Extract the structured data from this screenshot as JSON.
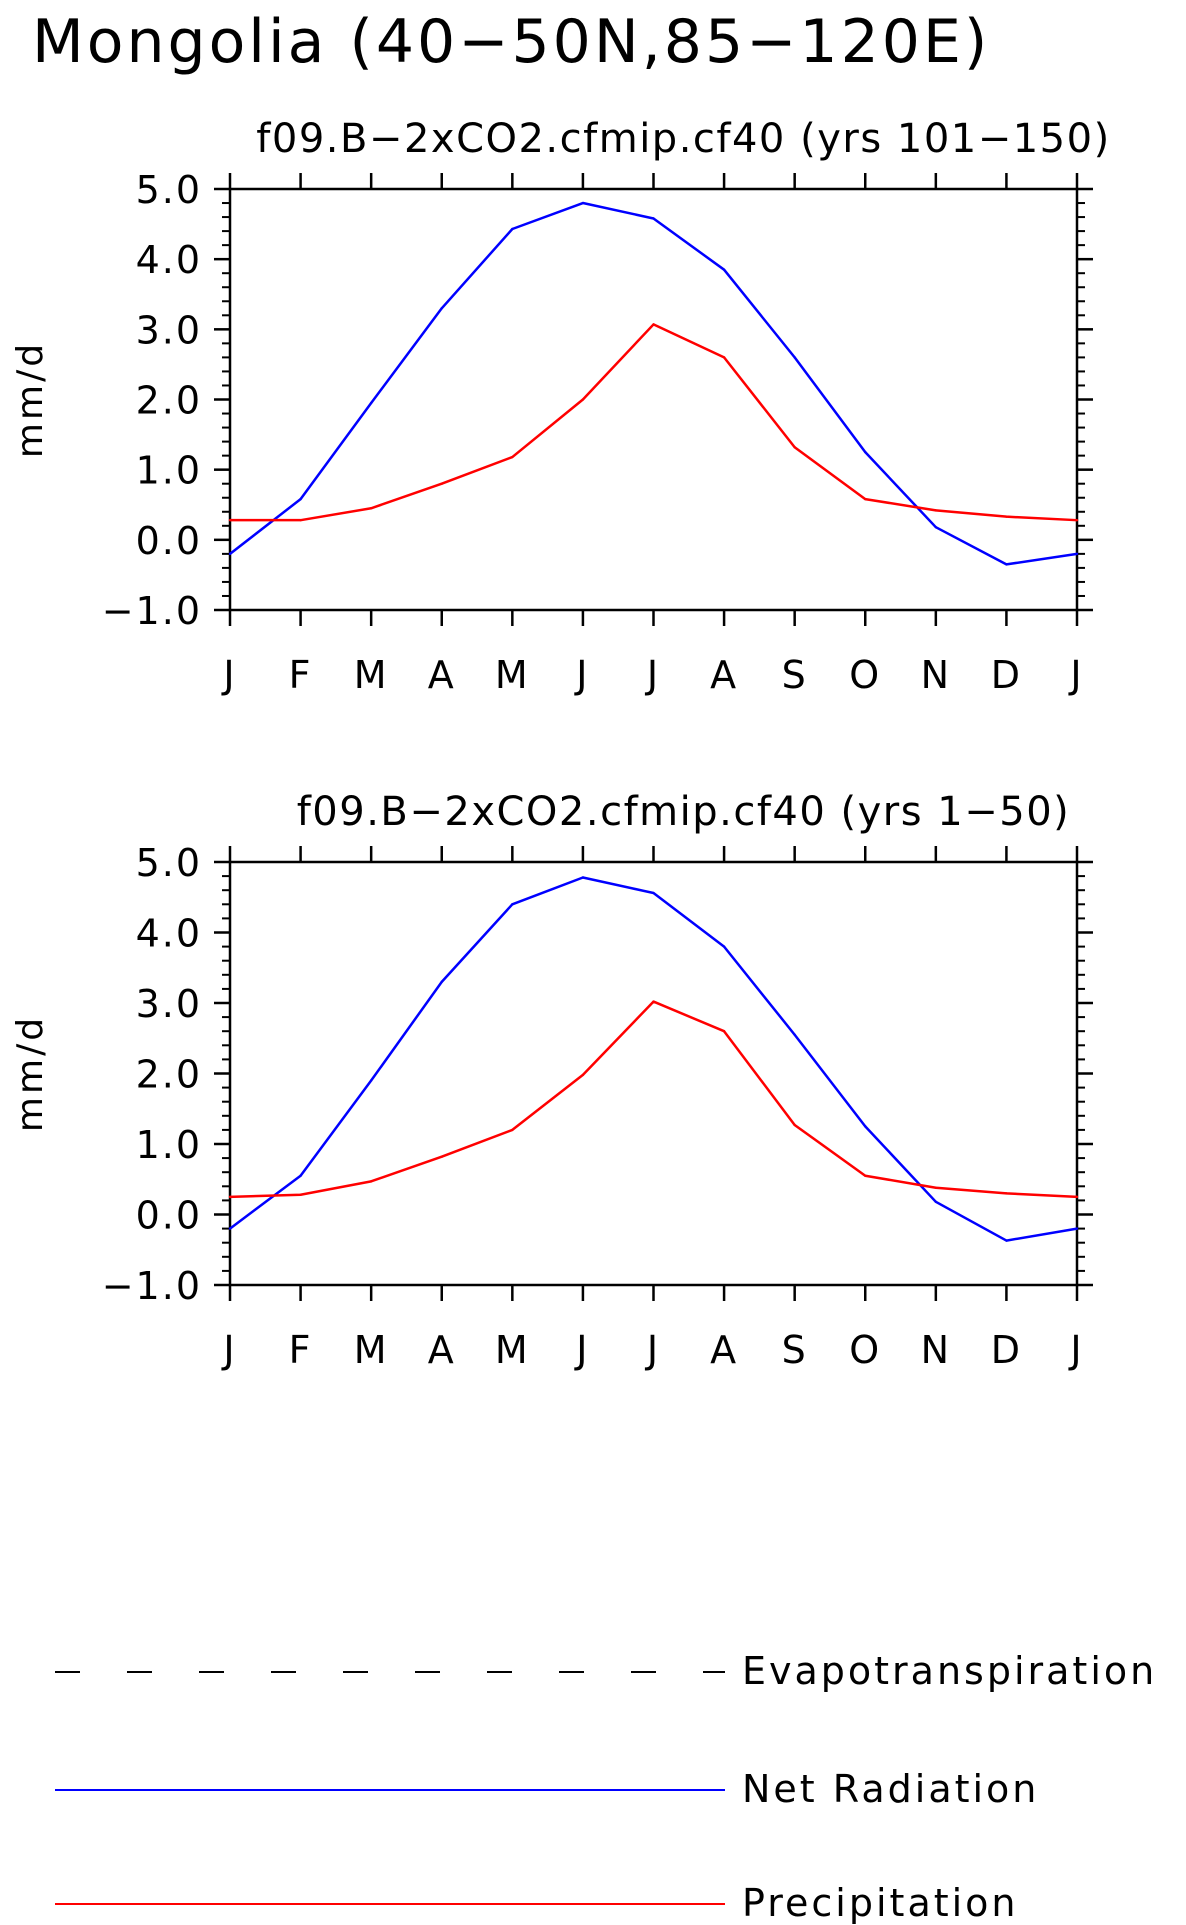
{
  "title": "Mongolia (40−50N,85−120E)",
  "legend": [
    {
      "name": "Evapotranspiration",
      "color": "#000000",
      "style": "dashed"
    },
    {
      "name": "Net Radiation",
      "color": "#0000ff",
      "style": "solid"
    },
    {
      "name": "Precipitation",
      "color": "#ff0000",
      "style": "solid"
    }
  ],
  "chart_data": [
    {
      "type": "line",
      "title": "f09.B−2xCO2.cfmip.cf40 (yrs 101−150)",
      "ylabel": "mm/d",
      "xlabel": "",
      "categories": [
        "J",
        "F",
        "M",
        "A",
        "M",
        "J",
        "J",
        "A",
        "S",
        "O",
        "N",
        "D",
        "J"
      ],
      "y_tick_labels": [
        "−1.0",
        "0.0",
        "1.0",
        "2.0",
        "3.0",
        "4.0",
        "5.0"
      ],
      "y_ticks": [
        -1,
        0,
        1,
        2,
        3,
        4,
        5
      ],
      "ylim": [
        -1,
        5
      ],
      "grid": false,
      "series": [
        {
          "name": "Net Radiation",
          "color": "#0000ff",
          "values": [
            -0.2,
            0.58,
            1.95,
            3.3,
            4.43,
            4.8,
            4.58,
            3.85,
            2.6,
            1.25,
            0.18,
            -0.35,
            -0.2
          ]
        },
        {
          "name": "Precipitation",
          "color": "#ff0000",
          "values": [
            0.28,
            0.28,
            0.45,
            0.8,
            1.18,
            2.0,
            3.07,
            2.6,
            1.32,
            0.58,
            0.42,
            0.33,
            0.28
          ]
        }
      ]
    },
    {
      "type": "line",
      "title": "f09.B−2xCO2.cfmip.cf40 (yrs 1−50)",
      "ylabel": "mm/d",
      "xlabel": "",
      "categories": [
        "J",
        "F",
        "M",
        "A",
        "M",
        "J",
        "J",
        "A",
        "S",
        "O",
        "N",
        "D",
        "J"
      ],
      "y_tick_labels": [
        "−1.0",
        "0.0",
        "1.0",
        "2.0",
        "3.0",
        "4.0",
        "5.0"
      ],
      "y_ticks": [
        -1,
        0,
        1,
        2,
        3,
        4,
        5
      ],
      "ylim": [
        -1,
        5
      ],
      "grid": false,
      "series": [
        {
          "name": "Net Radiation",
          "color": "#0000ff",
          "values": [
            -0.2,
            0.55,
            1.9,
            3.3,
            4.4,
            4.78,
            4.56,
            3.8,
            2.55,
            1.25,
            0.18,
            -0.37,
            -0.2
          ]
        },
        {
          "name": "Precipitation",
          "color": "#ff0000",
          "values": [
            0.25,
            0.28,
            0.47,
            0.82,
            1.2,
            1.98,
            3.02,
            2.6,
            1.27,
            0.55,
            0.38,
            0.3,
            0.25
          ]
        }
      ]
    }
  ]
}
